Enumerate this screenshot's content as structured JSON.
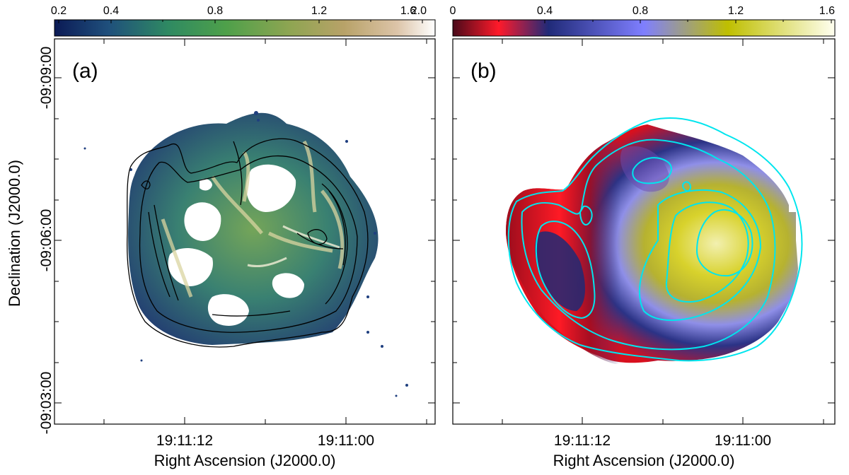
{
  "panels": [
    {
      "label": "(a)",
      "colorbar": {
        "ticks": [
          "0.2",
          "0.4",
          "0.8",
          "1.2",
          "1.6",
          "2.0"
        ],
        "colors": [
          "#0b1a55",
          "#1f4f7c",
          "#2f8a62",
          "#4ea04a",
          "#8fa552",
          "#b8a268",
          "#dcc4a8",
          "#ffffff"
        ]
      },
      "x_ticks": [
        "19:11:12",
        "19:11:00"
      ],
      "contour_color": "#000000"
    },
    {
      "label": "(b)",
      "colorbar": {
        "ticks": [
          "0",
          "0.4",
          "0.8",
          "1.2",
          "1.6"
        ],
        "colors": [
          "#4a0a1a",
          "#ff1a2a",
          "#202a78",
          "#7f7fff",
          "#bfbf00",
          "#fffff0"
        ]
      },
      "x_ticks": [
        "19:11:12",
        "19:11:00"
      ],
      "contour_color": "#00e5ee"
    }
  ],
  "y_ticks": [
    "-09:09:00",
    "-09:06:00",
    "-09:03:00"
  ],
  "xlabel": "Right Ascension (J2000.0)",
  "ylabel": "Declination (J2000.0)"
}
